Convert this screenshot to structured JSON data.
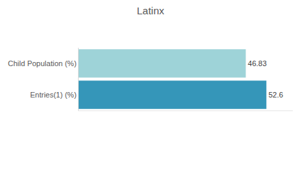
{
  "chart_data": {
    "type": "bar",
    "title": "Latinx",
    "orientation": "horizontal",
    "categories": [
      "Child Population (%)",
      "Entries(1) (%)"
    ],
    "values": [
      46.83,
      52.6
    ],
    "colors": [
      "#9ed3d8",
      "#3596b9"
    ],
    "xlim": [
      0,
      60
    ],
    "grid": false,
    "data_labels": true,
    "tick_labels": "y"
  }
}
